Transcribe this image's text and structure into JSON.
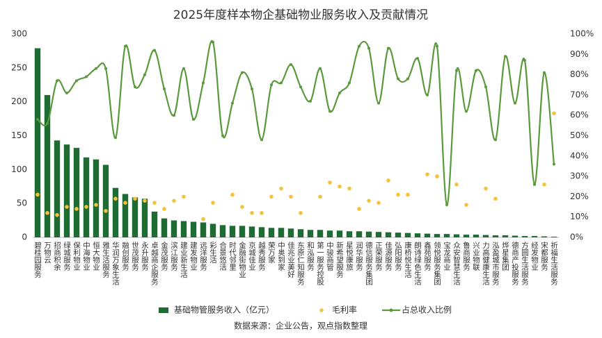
{
  "chart_data": {
    "type": "bar",
    "title": "2025年度样本物企基础物业服务收入及贡献情况",
    "source": "数据来源：企业公告，观点指数整理",
    "categories": [
      "碧桂园服务",
      "万物云",
      "招商积余",
      "绿城服务",
      "保利物业",
      "中海物业",
      "恒大物业",
      "雅生活服务",
      "华润万象生活",
      "融创服务",
      "世茂服务",
      "永升服务",
      "卓越商企服务",
      "金茂服务",
      "滨江服务",
      "建业新生活",
      "建发物业",
      "远洋服务",
      "彩生活",
      "合景悠活",
      "时代邻里",
      "金融街物业",
      "京城佳业",
      "越秀服务",
      "荣万家",
      "中奥到家",
      "佳兆业美好",
      "东原仁知服务",
      "和泓服务",
      "第一服务控股",
      "中骏商管",
      "新希望服务",
      "星悦康旅",
      "润华服务",
      "德信服务集团",
      "正荣服务",
      "佳源服务",
      "弘阳服务",
      "康桥悦生活",
      "朗诗绿色生活",
      "鑫苑服务",
      "领悦服务集团",
      "宝龙商业",
      "众安智慧生活",
      "鲁商服务",
      "兴业物联",
      "力高健康生活",
      "泓盈城市服务",
      "烨星集团",
      "德商产投服务",
      "方圆生活服务",
      "经发物业",
      "宋都服务",
      "祈福生活服务"
    ],
    "ylim": [
      0,
      300
    ],
    "yticks": [
      0,
      50,
      100,
      150,
      200,
      250,
      300
    ],
    "y2lim": [
      0,
      100
    ],
    "y2ticks": [
      {
        "value": 0,
        "label": "0%"
      },
      {
        "value": 10,
        "label": "10%"
      },
      {
        "value": 20,
        "label": "20%"
      },
      {
        "value": 30,
        "label": "30%"
      },
      {
        "value": 40,
        "label": "40%"
      },
      {
        "value": 50,
        "label": "50%"
      },
      {
        "value": 60,
        "label": "60%"
      },
      {
        "value": 70,
        "label": "70%"
      },
      {
        "value": 80,
        "label": "80%"
      },
      {
        "value": 90,
        "label": "90%"
      },
      {
        "value": 100,
        "label": "100%"
      }
    ],
    "series": [
      {
        "name": "基础物管服务收入（亿元）",
        "type": "bar",
        "color": "#1e6b34",
        "values": [
          279,
          210,
          143,
          137,
          132,
          118,
          115,
          107,
          73,
          64,
          59,
          57,
          38,
          28,
          25,
          24,
          23,
          22,
          20,
          18,
          17,
          17,
          16,
          15,
          14,
          14,
          13,
          12,
          11,
          11,
          10,
          10,
          9,
          9,
          8.5,
          8,
          7.5,
          7,
          6.5,
          6,
          5.5,
          5,
          5,
          4.5,
          4,
          4,
          3.5,
          3,
          3,
          2.5,
          2,
          2,
          1.5,
          1
        ]
      },
      {
        "name": "毛利率",
        "type": "scatter",
        "axis": "y2",
        "color": "#f5c23a",
        "values": [
          21,
          12,
          11,
          15,
          14,
          15,
          16,
          13,
          19,
          17,
          19,
          18,
          17,
          14,
          18,
          20,
          null,
          9,
          17,
          null,
          21,
          15,
          12,
          12,
          20,
          24,
          20,
          12,
          null,
          20,
          27,
          25,
          24,
          14,
          18,
          17,
          28,
          21,
          21,
          null,
          31,
          30,
          null,
          26,
          16,
          null,
          24,
          19,
          null,
          null,
          null,
          null,
          26,
          61
        ]
      },
      {
        "name": "占总收入比例",
        "type": "line",
        "axis": "y2",
        "color": "#5a9a3c",
        "values": [
          58,
          56,
          77,
          71,
          77,
          79,
          83,
          83,
          49,
          94,
          74,
          80,
          92,
          73,
          60,
          83,
          58,
          76,
          96,
          50,
          66,
          81,
          73,
          48,
          75,
          76,
          85,
          74,
          67,
          83,
          62,
          71,
          76,
          94,
          93,
          66,
          93,
          78,
          78,
          88,
          70,
          94,
          16,
          82,
          62,
          82,
          74,
          48,
          89,
          66,
          87,
          26,
          81,
          36
        ]
      }
    ]
  }
}
